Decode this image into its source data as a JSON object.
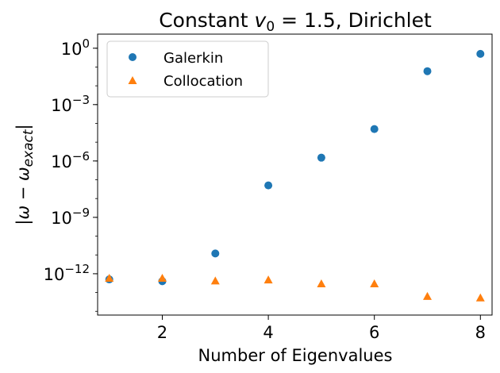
{
  "chart_data": {
    "type": "scatter",
    "title": {
      "prefix": "Constant ",
      "var_main": "v",
      "var_sub": "0",
      "suffix": " = 1.5, Dirichlet"
    },
    "xlabel": "Number of Eigenvalues",
    "ylabel": {
      "a": "|",
      "b": "ω",
      "c": " − ",
      "d": "ω",
      "sub": "exact",
      "e": "|"
    },
    "x_ticks": [
      "2",
      "4",
      "6",
      "8"
    ],
    "y_ticks": [
      {
        "base": "10",
        "exp": "0"
      },
      {
        "base": "10",
        "exp": "−3"
      },
      {
        "base": "10",
        "exp": "−6"
      },
      {
        "base": "10",
        "exp": "−9"
      },
      {
        "base": "10",
        "exp": "−12"
      }
    ],
    "xlim": [
      0.78,
      8.22
    ],
    "ylim": [
      -14.2,
      0.75
    ],
    "yscale": "log",
    "grid": false,
    "legend": {
      "position": "top-left"
    },
    "series": [
      {
        "name": "Galerkin",
        "marker": "circle",
        "color": "#1f77b4",
        "x": [
          1,
          2,
          3,
          4,
          5,
          6,
          7,
          8
        ],
        "y": [
          5e-13,
          4e-13,
          1.2e-11,
          5e-08,
          1.5e-06,
          5e-05,
          0.06,
          0.5
        ]
      },
      {
        "name": "Collocation",
        "marker": "triangle",
        "color": "#ff7f0e",
        "x": [
          1,
          2,
          3,
          4,
          5,
          6,
          7,
          8
        ],
        "y": [
          5.5e-13,
          5.5e-13,
          4e-13,
          4.5e-13,
          2.8e-13,
          2.8e-13,
          6e-14,
          5e-14
        ]
      }
    ]
  }
}
